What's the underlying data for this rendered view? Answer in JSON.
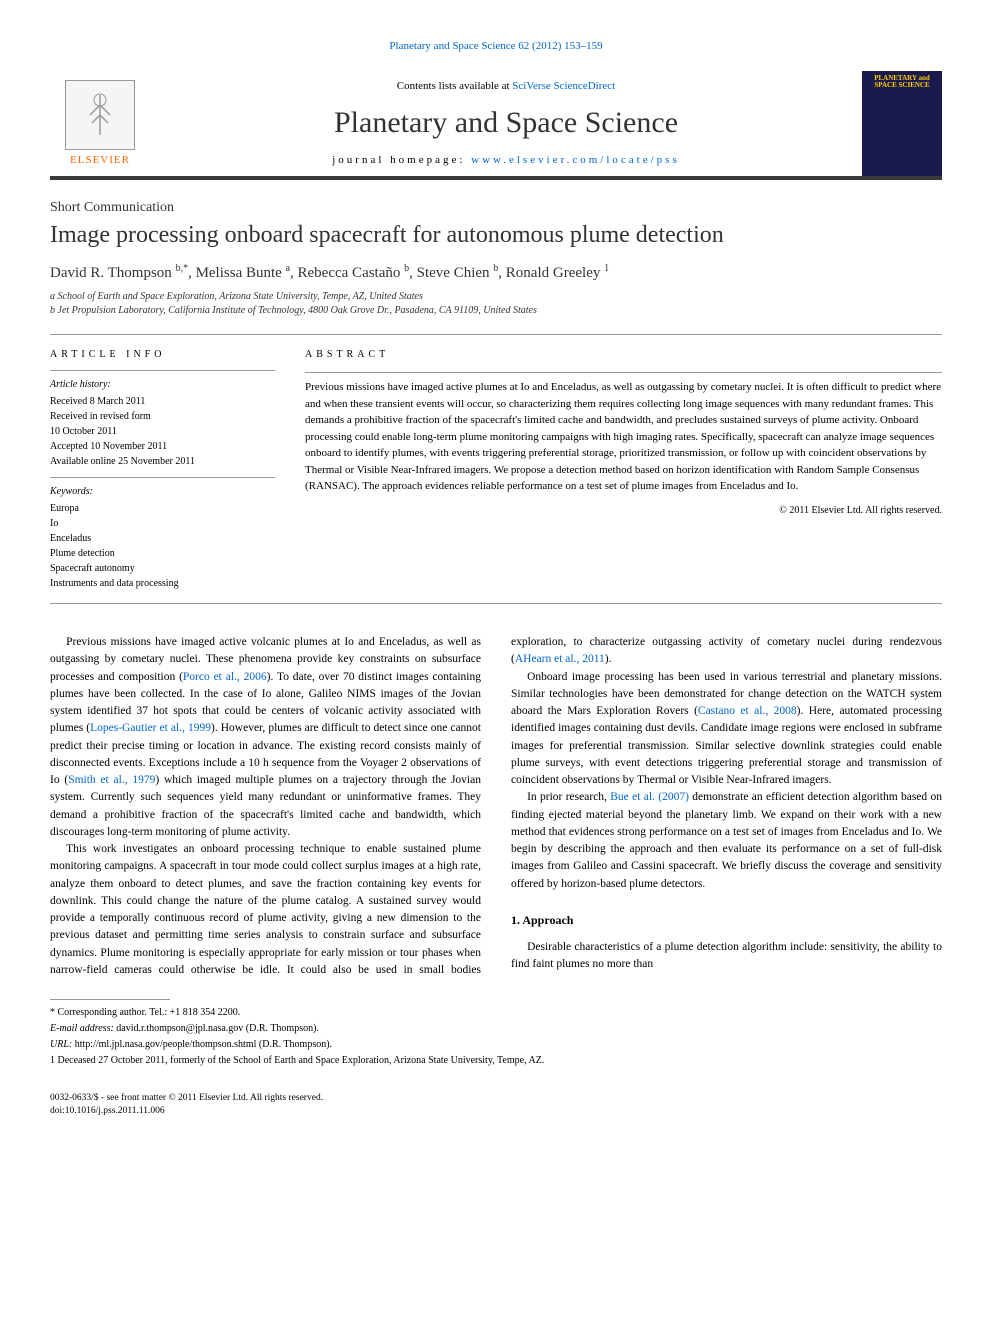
{
  "header": {
    "citation_line": "Planetary and Space Science 62 (2012) 153–159",
    "contents_prefix": "Contents lists available at ",
    "contents_link": "SciVerse ScienceDirect",
    "journal_title": "Planetary and Space Science",
    "homepage_prefix": "journal homepage: ",
    "homepage_link": "www.elsevier.com/locate/pss",
    "elsevier_label": "ELSEVIER",
    "cover_title": "PLANETARY and SPACE SCIENCE"
  },
  "article": {
    "short_comm": "Short Communication",
    "title": "Image processing onboard spacecraft for autonomous plume detection",
    "authors_html": "David R. Thompson <sup>b,*</sup>, Melissa Bunte <sup>a</sup>, Rebecca Castaño <sup>b</sup>, Steve Chien <sup>b</sup>, Ronald Greeley <sup>1</sup>",
    "affil_a": "a School of Earth and Space Exploration, Arizona State University, Tempe, AZ, United States",
    "affil_b": "b Jet Propulsion Laboratory, California Institute of Technology, 4800 Oak Grove Dr., Pasadena, CA 91109, United States"
  },
  "info": {
    "heading": "ARTICLE INFO",
    "history_label": "Article history:",
    "received": "Received 8 March 2011",
    "revised1": "Received in revised form",
    "revised2": "10 October 2011",
    "accepted": "Accepted 10 November 2011",
    "online": "Available online 25 November 2011",
    "keywords_label": "Keywords:",
    "keywords": [
      "Europa",
      "Io",
      "Enceladus",
      "Plume detection",
      "Spacecraft autonomy",
      "Instruments and data processing"
    ]
  },
  "abstract": {
    "heading": "ABSTRACT",
    "text": "Previous missions have imaged active plumes at Io and Enceladus, as well as outgassing by cometary nuclei. It is often difficult to predict where and when these transient events will occur, so characterizing them requires collecting long image sequences with many redundant frames. This demands a prohibitive fraction of the spacecraft's limited cache and bandwidth, and precludes sustained surveys of plume activity. Onboard processing could enable long-term plume monitoring campaigns with high imaging rates. Specifically, spacecraft can analyze image sequences onboard to identify plumes, with events triggering preferential storage, prioritized transmission, or follow up with coincident observations by Thermal or Visible Near-Infrared imagers. We propose a detection method based on horizon identification with Random Sample Consensus (RANSAC). The approach evidences reliable performance on a test set of plume images from Enceladus and Io.",
    "copyright": "© 2011 Elsevier Ltd. All rights reserved."
  },
  "body": {
    "p1a": "Previous missions have imaged active volcanic plumes at Io and Enceladus, as well as outgassing by cometary nuclei. These phenomena provide key constraints on subsurface processes and composition (",
    "p1c1": "Porco et al., 2006",
    "p1b": "). To date, over 70 distinct images containing plumes have been collected. In the case of Io alone, Galileo NIMS images of the Jovian system identified 37 hot spots that could be centers of volcanic activity associated with plumes (",
    "p1c2": "Lopes-Gautier et al., 1999",
    "p1c": "). However, plumes are difficult to detect since one cannot predict their precise timing or location in advance. The existing record consists mainly of disconnected events. Exceptions include a 10 h sequence from the Voyager 2 observations of Io (",
    "p1c3": "Smith et al., 1979",
    "p1d": ") which imaged multiple plumes on a trajectory through the Jovian system. Currently such sequences yield many redundant or uninformative frames. They demand a prohibitive fraction of the spacecraft's limited cache and bandwidth, which discourages long-term monitoring of plume activity.",
    "p2": "This work investigates an onboard processing technique to enable sustained plume monitoring campaigns. A spacecraft in tour mode could collect surplus images at a high rate, analyze them onboard to detect plumes, and save the fraction containing key events for downlink. This could change the nature of the plume catalog. A sustained survey would provide a temporally continuous record of plume activity, giving a new dimension to the previous dataset and permitting time series analysis to constrain surface and subsurface dynamics. Plume monitoring is especially appropriate for early mission or tour phases when narrow-field cameras could otherwise be idle. It could also be used in small bodies exploration, to characterize outgassing activity of cometary nuclei during rendezvous (",
    "p2c1": "AHearn et al., 2011",
    "p2b": ").",
    "p3a": "Onboard image processing has been used in various terrestrial and planetary missions. Similar technologies have been demonstrated for change detection on the WATCH system aboard the Mars Exploration Rovers (",
    "p3c1": "Castano et al., 2008",
    "p3b": "). Here, automated processing identified images containing dust devils. Candidate image regions were enclosed in subframe images for preferential transmission. Similar selective downlink strategies could enable plume surveys, with event detections triggering preferential storage and transmission of coincident observations by Thermal or Visible Near-Infrared imagers.",
    "p4a": "In prior research, ",
    "p4c1": "Bue et al. (2007)",
    "p4b": " demonstrate an efficient detection algorithm based on finding ejected material beyond the planetary limb. We expand on their work with a new method that evidences strong performance on a test set of images from Enceladus and Io. We begin by describing the approach and then evaluate its performance on a set of full-disk images from Galileo and Cassini spacecraft. We briefly discuss the coverage and sensitivity offered by horizon-based plume detectors.",
    "sec1_heading": "1. Approach",
    "p5": "Desirable characteristics of a plume detection algorithm include: sensitivity, the ability to find faint plumes no more than"
  },
  "footnotes": {
    "corr": "* Corresponding author. Tel.: +1 818 354 2200.",
    "email_label": "E-mail address: ",
    "email": "david.r.thompson@jpl.nasa.gov (D.R. Thompson).",
    "url_label": "URL: ",
    "url": "http://ml.jpl.nasa.gov/people/thompson.shtml (D.R. Thompson).",
    "deceased": "1 Deceased 27 October 2011, formerly of the School of Earth and Space Exploration, Arizona State University, Tempe, AZ."
  },
  "bottom": {
    "line1": "0032-0633/$ - see front matter © 2011 Elsevier Ltd. All rights reserved.",
    "line2": "doi:10.1016/j.pss.2011.11.006"
  },
  "colors": {
    "link": "#0066cc",
    "elsevier_orange": "#ff6600",
    "banner_border": "#3a3a3a",
    "cover_bg": "#1a1a4d",
    "cover_accent": "#ffcc00"
  }
}
